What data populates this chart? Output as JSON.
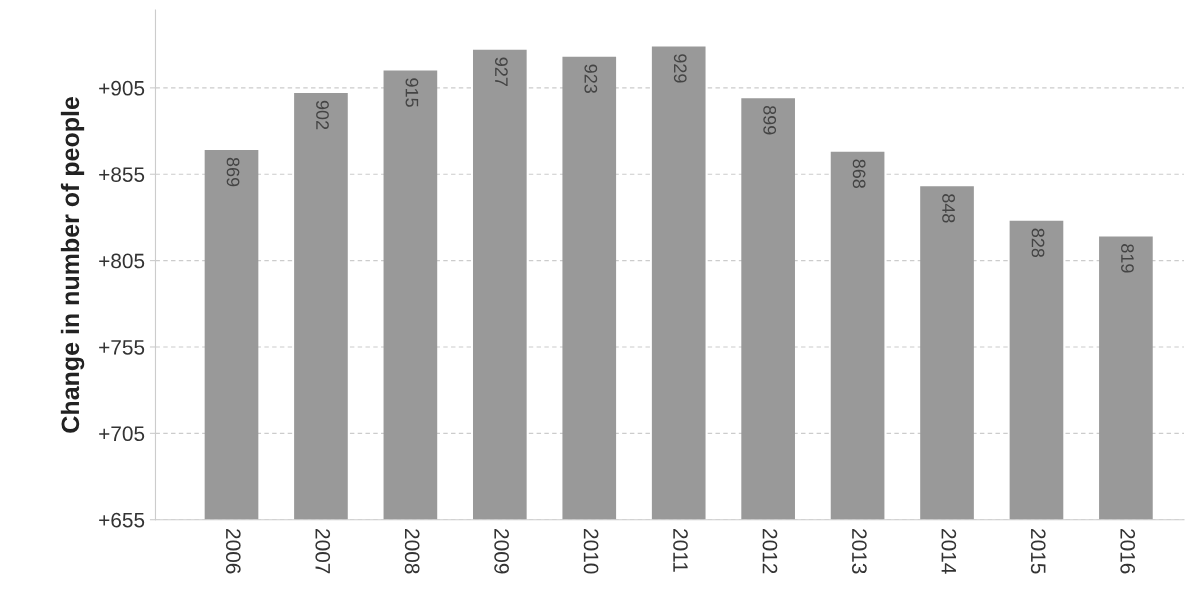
{
  "chart_data": {
    "type": "bar",
    "ylabel": "Change in number of people",
    "categories": [
      "2006",
      "2007",
      "2008",
      "2009",
      "2010",
      "2011",
      "2012",
      "2013",
      "2014",
      "2015",
      "2016"
    ],
    "values": [
      869,
      902,
      915,
      927,
      923,
      929,
      899,
      868,
      848,
      828,
      819
    ],
    "color": "#999999",
    "data_labels": true,
    "ylim": [
      655,
      950
    ],
    "yticks": [
      {
        "value": 655,
        "label": "+655"
      },
      {
        "value": 705,
        "label": "+705"
      },
      {
        "value": 755,
        "label": "+755"
      },
      {
        "value": 805,
        "label": "+805"
      },
      {
        "value": 855,
        "label": "+855"
      },
      {
        "value": 905,
        "label": "+905"
      }
    ],
    "grid": "y",
    "legend": false
  }
}
